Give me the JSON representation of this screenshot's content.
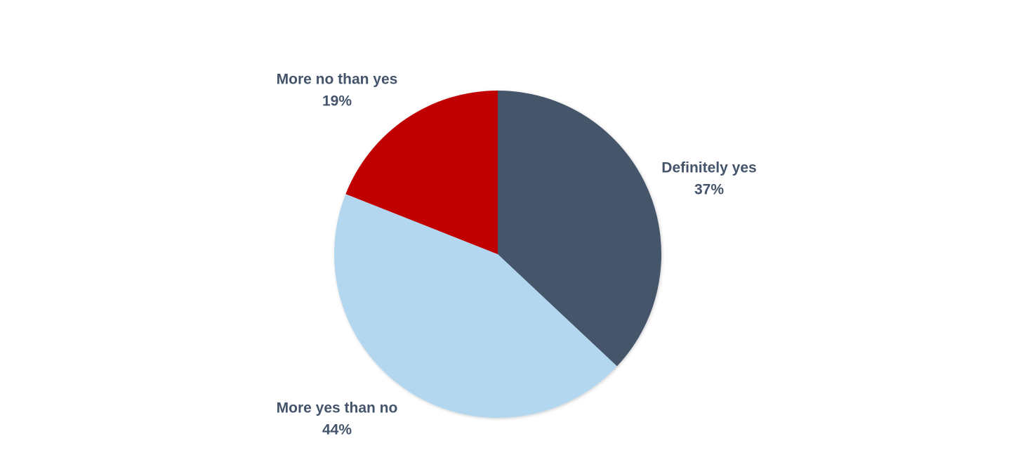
{
  "chart_data": {
    "type": "pie",
    "categories": [
      "Definitely yes",
      "More yes than no",
      "More no than yes"
    ],
    "values": [
      37,
      44,
      19
    ],
    "value_labels": [
      "37%",
      "44%",
      "19%"
    ],
    "colors": [
      "#44546a",
      "#b4d7f0",
      "#c00000"
    ]
  }
}
